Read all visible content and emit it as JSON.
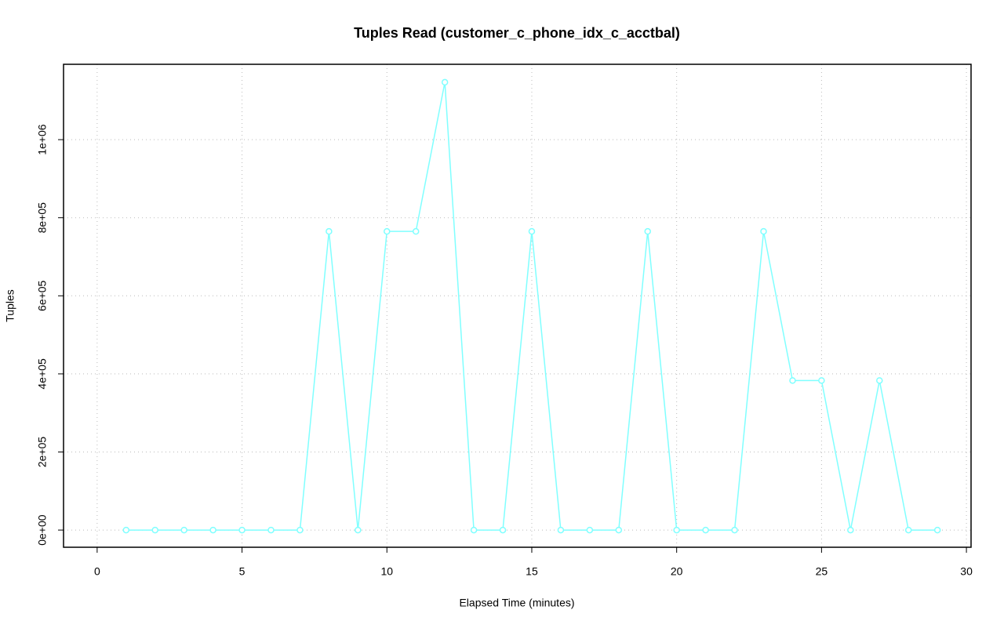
{
  "chart_data": {
    "type": "line",
    "title": "Tuples Read (customer_c_phone_idx_c_acctbal)",
    "x_label": "Elapsed Time (minutes)",
    "y_label": "Tuples",
    "x": [
      1,
      2,
      3,
      4,
      5,
      6,
      7,
      8,
      9,
      10,
      11,
      12,
      13,
      14,
      15,
      16,
      17,
      18,
      19,
      20,
      21,
      22,
      23,
      24,
      25,
      26,
      27,
      28,
      29
    ],
    "series": [
      {
        "color": "#80ffff",
        "values": [
          0,
          0,
          0,
          0,
          0,
          0,
          0,
          765000,
          0,
          765000,
          765000,
          1147000,
          0,
          0,
          765000,
          0,
          0,
          0,
          765000,
          0,
          0,
          0,
          765000,
          383000,
          383000,
          0,
          383000,
          0,
          0
        ]
      }
    ],
    "xlim": [
      -1.16,
      30.16
    ],
    "ylim": [
      -44000,
      1193000
    ],
    "xticks": [
      0,
      5,
      10,
      15,
      20,
      25,
      30
    ],
    "yticks": [
      {
        "value": 0,
        "label": "0e+00"
      },
      {
        "value": 200000,
        "label": "2e+05"
      },
      {
        "value": 400000,
        "label": "4e+05"
      },
      {
        "value": 600000,
        "label": "6e+05"
      },
      {
        "value": 800000,
        "label": "8e+05"
      },
      {
        "value": 1000000,
        "label": "1e+06"
      }
    ],
    "grid": true
  }
}
